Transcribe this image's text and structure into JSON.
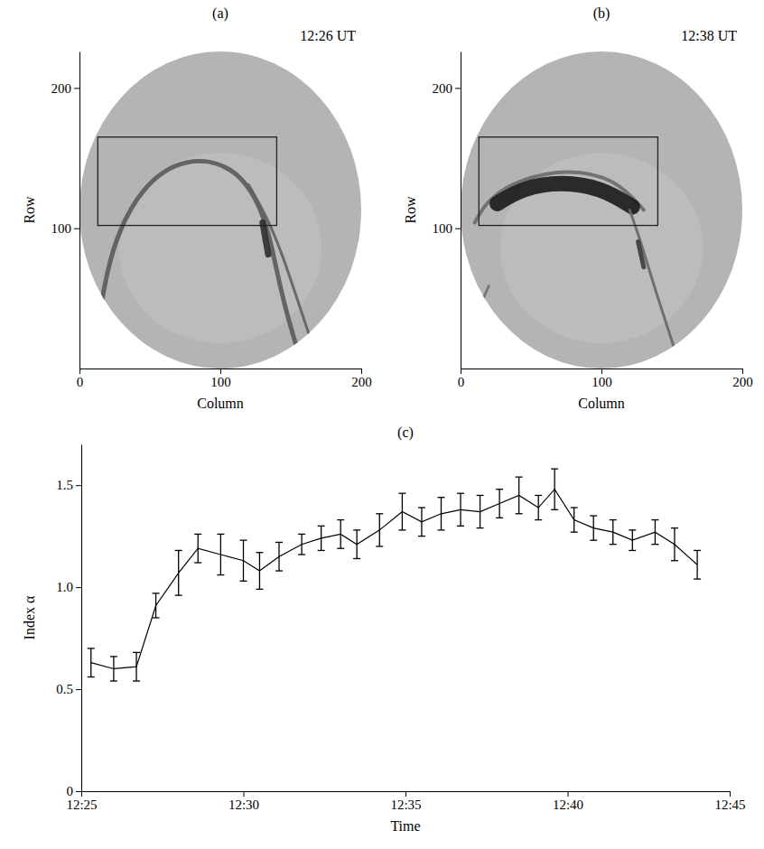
{
  "chart_data": [
    {
      "type": "image",
      "panel": "(a)",
      "title": "12:26 UT",
      "x_label": "Column",
      "y_label": "Row",
      "xlim": [
        0,
        200
      ],
      "ylim": [
        0,
        226
      ],
      "xticks": [
        0,
        100,
        200
      ],
      "yticks": [
        100,
        200
      ],
      "box": {
        "x": [
          13,
          140
        ],
        "y": [
          102,
          165
        ]
      }
    },
    {
      "type": "image",
      "panel": "(b)",
      "title": "12:38 UT",
      "x_label": "Column",
      "y_label": "Row",
      "xlim": [
        0,
        200
      ],
      "ylim": [
        0,
        226
      ],
      "xticks": [
        0,
        100,
        200
      ],
      "yticks": [
        100,
        200
      ],
      "box": {
        "x": [
          13,
          140
        ],
        "y": [
          102,
          165
        ]
      }
    },
    {
      "type": "line",
      "panel": "(c)",
      "x_label": "Time",
      "y_label": "Index α",
      "color": "#000000",
      "x": [
        745.3,
        746.0,
        746.7,
        747.3,
        748.0,
        748.6,
        749.3,
        750.0,
        750.5,
        751.1,
        751.8,
        752.4,
        753.0,
        753.5,
        754.2,
        754.9,
        755.5,
        756.1,
        756.7,
        757.3,
        757.9,
        758.5,
        759.1,
        759.6,
        760.2,
        760.8,
        761.4,
        762.0,
        762.7,
        763.3,
        764.0
      ],
      "values": [
        0.63,
        0.6,
        0.61,
        0.91,
        1.07,
        1.19,
        1.16,
        1.13,
        1.08,
        1.15,
        1.21,
        1.24,
        1.26,
        1.21,
        1.28,
        1.37,
        1.32,
        1.36,
        1.38,
        1.37,
        1.41,
        1.45,
        1.39,
        1.48,
        1.33,
        1.29,
        1.27,
        1.23,
        1.27,
        1.21,
        1.11
      ],
      "errors": [
        0.07,
        0.06,
        0.07,
        0.06,
        0.11,
        0.07,
        0.1,
        0.1,
        0.09,
        0.07,
        0.05,
        0.06,
        0.07,
        0.07,
        0.08,
        0.09,
        0.07,
        0.08,
        0.08,
        0.08,
        0.07,
        0.09,
        0.06,
        0.1,
        0.06,
        0.06,
        0.06,
        0.05,
        0.06,
        0.08,
        0.07
      ],
      "xlim": [
        745,
        765
      ],
      "xticks": [
        {
          "value": 745,
          "label": "12:25"
        },
        {
          "value": 750,
          "label": "12:30"
        },
        {
          "value": 755,
          "label": "12:35"
        },
        {
          "value": 760,
          "label": "12:40"
        },
        {
          "value": 765,
          "label": "12:45"
        }
      ],
      "ylim": [
        0,
        1.7
      ],
      "yticks": [
        0,
        0.5,
        {
          "value": 1,
          "label": "1.0"
        },
        1.5
      ]
    }
  ]
}
